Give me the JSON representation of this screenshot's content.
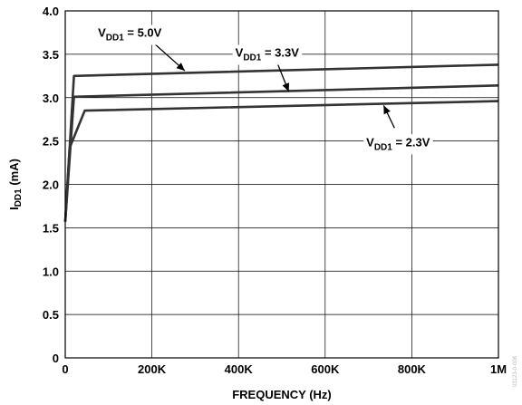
{
  "chart_data": {
    "type": "line",
    "title": "",
    "xlabel": "FREQUENCY (Hz)",
    "ylabel": {
      "main": "I",
      "sub": "DD1",
      "unit": " (mA)"
    },
    "xlim": [
      0,
      1000000
    ],
    "ylim": [
      0,
      4.0
    ],
    "grid": true,
    "x_ticks": [
      {
        "value": 0,
        "label": "0"
      },
      {
        "value": 200000,
        "label": "200K"
      },
      {
        "value": 400000,
        "label": "400K"
      },
      {
        "value": 600000,
        "label": "600K"
      },
      {
        "value": 800000,
        "label": "800K"
      },
      {
        "value": 1000000,
        "label": "1M"
      }
    ],
    "y_ticks": [
      {
        "value": 0,
        "label": "0"
      },
      {
        "value": 0.5,
        "label": "0.5"
      },
      {
        "value": 1.0,
        "label": "1.0"
      },
      {
        "value": 1.5,
        "label": "1.5"
      },
      {
        "value": 2.0,
        "label": "2.0"
      },
      {
        "value": 2.5,
        "label": "2.5"
      },
      {
        "value": 3.0,
        "label": "3.0"
      },
      {
        "value": 3.5,
        "label": "3.5"
      },
      {
        "value": 4.0,
        "label": "4.0"
      }
    ],
    "series": [
      {
        "key": "vdd5",
        "x": [
          0,
          20000,
          1000000
        ],
        "y": [
          1.57,
          3.25,
          3.38
        ],
        "annotation": {
          "pre": "V",
          "sub": "DD1",
          "post": " = 5.0V",
          "arrow_from": [
            195000,
            3.67
          ],
          "arrow_to": [
            276000,
            3.31
          ]
        }
      },
      {
        "key": "vdd33",
        "x": [
          0,
          20000,
          1000000
        ],
        "y": [
          1.57,
          3.01,
          3.14
        ],
        "annotation": {
          "pre": "V",
          "sub": "DD1",
          "post": " = 3.3V",
          "arrow_from": [
            487000,
            3.43
          ],
          "arrow_to": [
            516000,
            3.07
          ]
        }
      },
      {
        "key": "vdd23",
        "x": [
          0,
          10000,
          45000,
          1000000
        ],
        "y": [
          1.57,
          2.42,
          2.85,
          2.96
        ],
        "annotation": {
          "pre": "V",
          "sub": "DD1",
          "post": " = 2.3V",
          "arrow_from": [
            760000,
            2.65
          ],
          "arrow_to": [
            735000,
            2.91
          ]
        }
      }
    ],
    "line_color": "#333333",
    "watermark": "03123-0-008"
  }
}
